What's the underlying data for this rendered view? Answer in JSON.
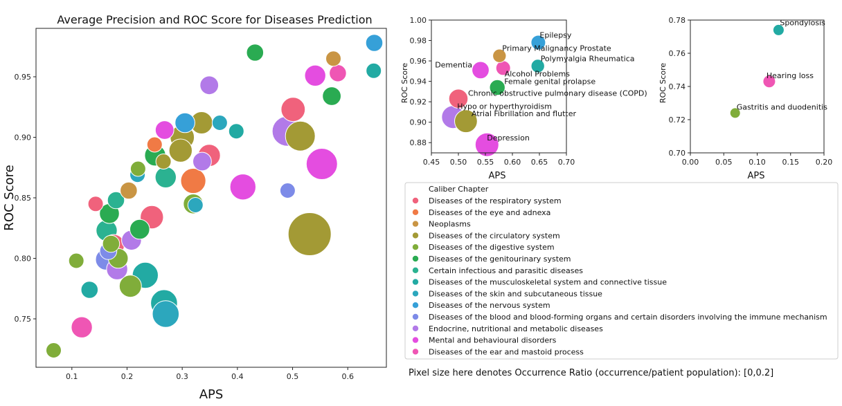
{
  "colors": {
    "respiratory": "#f0627c",
    "eye": "#f07a45",
    "neoplasms": "#c99544",
    "circulatory": "#a39a35",
    "digestive": "#80ad3a",
    "genitourinary": "#2aab52",
    "infectious": "#2bb291",
    "musculoskeletal": "#22aaa3",
    "skin": "#2ca7bd",
    "nervous": "#36a0d8",
    "blood": "#7d8be8",
    "endocrine": "#b27ae8",
    "mental": "#e44de0",
    "ear": "#ef56b4"
  },
  "legend": {
    "title": "Caliber Chapter",
    "items": [
      {
        "key": "respiratory",
        "label": "Diseases of the respiratory system"
      },
      {
        "key": "eye",
        "label": "Diseases of the eye and adnexa"
      },
      {
        "key": "neoplasms",
        "label": "Neoplasms"
      },
      {
        "key": "circulatory",
        "label": "Diseases of the circulatory system"
      },
      {
        "key": "digestive",
        "label": "Diseases of the digestive system"
      },
      {
        "key": "genitourinary",
        "label": "Diseases of the genitourinary system"
      },
      {
        "key": "infectious",
        "label": "Certain infectious and parasitic diseases"
      },
      {
        "key": "musculoskeletal",
        "label": "Diseases of the musculoskeletal system and connective tissue"
      },
      {
        "key": "skin",
        "label": "Diseases of the skin and subcutaneous tissue"
      },
      {
        "key": "nervous",
        "label": "Diseases of the nervous system"
      },
      {
        "key": "blood",
        "label": "Diseases of the blood and blood-forming organs and certain disorders involving the immune mechanism"
      },
      {
        "key": "endocrine",
        "label": "Endocrine, nutritional and metabolic diseases"
      },
      {
        "key": "mental",
        "label": "Mental and behavioural disorders"
      },
      {
        "key": "ear",
        "label": "Diseases of the ear and mastoid process"
      }
    ]
  },
  "caption": "Pixel size here denotes Occurrence Ratio (occurrence/patient population): [0,0.2]",
  "chart_data": [
    {
      "type": "scatter",
      "title": "Average Precision and ROC Score for Diseases Prediction",
      "xlabel": "APS",
      "ylabel": "ROC Score",
      "xlim": [
        0.035,
        0.67
      ],
      "ylim": [
        0.71,
        0.99
      ],
      "xticks": [
        0.1,
        0.2,
        0.3,
        0.4,
        0.5,
        0.6
      ],
      "yticks": [
        0.75,
        0.8,
        0.85,
        0.9,
        0.95
      ],
      "xtick_labels": [
        "0.1",
        "0.2",
        "0.3",
        "0.4",
        "0.5",
        "0.6"
      ],
      "ytick_labels": [
        "0.75",
        "0.80",
        "0.85",
        "0.90",
        "0.95"
      ],
      "grid": false,
      "points": [
        {
          "x": 0.067,
          "y": 0.724,
          "s": 0.01,
          "c": "digestive"
        },
        {
          "x": 0.108,
          "y": 0.798,
          "s": 0.01,
          "c": "digestive"
        },
        {
          "x": 0.118,
          "y": 0.743,
          "s": 0.03,
          "c": "ear"
        },
        {
          "x": 0.132,
          "y": 0.774,
          "s": 0.015,
          "c": "musculoskeletal"
        },
        {
          "x": 0.143,
          "y": 0.845,
          "s": 0.01,
          "c": "respiratory"
        },
        {
          "x": 0.162,
          "y": 0.799,
          "s": 0.03,
          "c": "blood"
        },
        {
          "x": 0.163,
          "y": 0.823,
          "s": 0.03,
          "c": "infectious"
        },
        {
          "x": 0.166,
          "y": 0.806,
          "s": 0.015,
          "c": "blood"
        },
        {
          "x": 0.168,
          "y": 0.837,
          "s": 0.025,
          "c": "genitourinary"
        },
        {
          "x": 0.171,
          "y": 0.812,
          "s": 0.015,
          "c": "digestive"
        },
        {
          "x": 0.176,
          "y": 0.811,
          "s": 0.03,
          "c": "respiratory"
        },
        {
          "x": 0.18,
          "y": 0.848,
          "s": 0.015,
          "c": "infectious"
        },
        {
          "x": 0.182,
          "y": 0.791,
          "s": 0.03,
          "c": "endocrine"
        },
        {
          "x": 0.184,
          "y": 0.8,
          "s": 0.025,
          "c": "digestive"
        },
        {
          "x": 0.203,
          "y": 0.856,
          "s": 0.015,
          "c": "neoplasms"
        },
        {
          "x": 0.206,
          "y": 0.777,
          "s": 0.035,
          "c": "digestive"
        },
        {
          "x": 0.208,
          "y": 0.815,
          "s": 0.025,
          "c": "endocrine"
        },
        {
          "x": 0.219,
          "y": 0.869,
          "s": 0.01,
          "c": "skin"
        },
        {
          "x": 0.22,
          "y": 0.874,
          "s": 0.01,
          "c": "digestive"
        },
        {
          "x": 0.223,
          "y": 0.824,
          "s": 0.025,
          "c": "genitourinary"
        },
        {
          "x": 0.233,
          "y": 0.786,
          "s": 0.055,
          "c": "musculoskeletal"
        },
        {
          "x": 0.245,
          "y": 0.834,
          "s": 0.04,
          "c": "respiratory"
        },
        {
          "x": 0.25,
          "y": 0.894,
          "s": 0.01,
          "c": "eye"
        },
        {
          "x": 0.251,
          "y": 0.885,
          "s": 0.03,
          "c": "genitourinary"
        },
        {
          "x": 0.266,
          "y": 0.88,
          "s": 0.01,
          "c": "circulatory"
        },
        {
          "x": 0.267,
          "y": 0.763,
          "s": 0.06,
          "c": "musculoskeletal"
        },
        {
          "x": 0.268,
          "y": 0.906,
          "s": 0.02,
          "c": "mental"
        },
        {
          "x": 0.27,
          "y": 0.754,
          "s": 0.06,
          "c": "skin"
        },
        {
          "x": 0.27,
          "y": 0.867,
          "s": 0.03,
          "c": "infectious"
        },
        {
          "x": 0.297,
          "y": 0.889,
          "s": 0.04,
          "c": "circulatory"
        },
        {
          "x": 0.3,
          "y": 0.9,
          "s": 0.045,
          "c": "circulatory"
        },
        {
          "x": 0.305,
          "y": 0.912,
          "s": 0.025,
          "c": "nervous"
        },
        {
          "x": 0.32,
          "y": 0.864,
          "s": 0.05,
          "c": "eye"
        },
        {
          "x": 0.32,
          "y": 0.845,
          "s": 0.025,
          "c": "digestive"
        },
        {
          "x": 0.324,
          "y": 0.844,
          "s": 0.01,
          "c": "skin"
        },
        {
          "x": 0.335,
          "y": 0.912,
          "s": 0.035,
          "c": "circulatory"
        },
        {
          "x": 0.336,
          "y": 0.88,
          "s": 0.02,
          "c": "endocrine"
        },
        {
          "x": 0.349,
          "y": 0.885,
          "s": 0.035,
          "c": "respiratory"
        },
        {
          "x": 0.349,
          "y": 0.943,
          "s": 0.02,
          "c": "endocrine"
        },
        {
          "x": 0.368,
          "y": 0.912,
          "s": 0.01,
          "c": "skin"
        },
        {
          "x": 0.398,
          "y": 0.905,
          "s": 0.01,
          "c": "musculoskeletal"
        },
        {
          "x": 0.41,
          "y": 0.859,
          "s": 0.055,
          "c": "mental"
        },
        {
          "x": 0.432,
          "y": 0.97,
          "s": 0.015,
          "c": "genitourinary"
        },
        {
          "x": 0.49,
          "y": 0.905,
          "s": 0.08,
          "c": "endocrine"
        },
        {
          "x": 0.491,
          "y": 0.856,
          "s": 0.01,
          "c": "blood"
        },
        {
          "x": 0.501,
          "y": 0.923,
          "s": 0.045,
          "c": "respiratory"
        },
        {
          "x": 0.514,
          "y": 0.901,
          "s": 0.08,
          "c": "circulatory"
        },
        {
          "x": 0.531,
          "y": 0.82,
          "s": 0.2,
          "c": "circulatory"
        },
        {
          "x": 0.541,
          "y": 0.951,
          "s": 0.03,
          "c": "mental"
        },
        {
          "x": 0.553,
          "y": 0.878,
          "s": 0.09,
          "c": "mental"
        },
        {
          "x": 0.571,
          "y": 0.934,
          "s": 0.02,
          "c": "genitourinary"
        },
        {
          "x": 0.574,
          "y": 0.965,
          "s": 0.01,
          "c": "neoplasms"
        },
        {
          "x": 0.582,
          "y": 0.953,
          "s": 0.015,
          "c": "ear"
        },
        {
          "x": 0.647,
          "y": 0.955,
          "s": 0.01,
          "c": "musculoskeletal"
        },
        {
          "x": 0.648,
          "y": 0.978,
          "s": 0.015,
          "c": "nervous"
        }
      ]
    },
    {
      "type": "scatter",
      "title": "",
      "xlabel": "APS",
      "ylabel": "ROC Score",
      "xlim": [
        0.45,
        0.7
      ],
      "ylim": [
        0.87,
        1.0
      ],
      "xticks": [
        0.45,
        0.5,
        0.55,
        0.6,
        0.65,
        0.7
      ],
      "yticks": [
        0.88,
        0.9,
        0.92,
        0.94,
        0.96,
        0.98,
        1.0
      ],
      "xtick_labels": [
        "0.45",
        "0.50",
        "0.55",
        "0.60",
        "0.65",
        "0.70"
      ],
      "ytick_labels": [
        "0.88",
        "0.90",
        "0.92",
        "0.94",
        "0.96",
        "0.98",
        "1.00"
      ],
      "grid": false,
      "points": [
        {
          "x": 0.648,
          "y": 0.978,
          "s": 0.015,
          "c": "nervous",
          "label": "Epilepsy",
          "ldx": 2,
          "ldy": -7,
          "anchor": "start"
        },
        {
          "x": 0.576,
          "y": 0.965,
          "s": 0.01,
          "c": "neoplasms",
          "label": "Primary Malignancy Prostate",
          "ldx": 4,
          "ldy": -7,
          "anchor": "start"
        },
        {
          "x": 0.647,
          "y": 0.955,
          "s": 0.01,
          "c": "musculoskeletal",
          "label": "Polymyalgia Rheumatica",
          "ldx": 4,
          "ldy": -7,
          "anchor": "start"
        },
        {
          "x": 0.541,
          "y": 0.951,
          "s": 0.03,
          "c": "mental",
          "label": "Dementia",
          "ldx": -12,
          "ldy": -4,
          "anchor": "end"
        },
        {
          "x": 0.583,
          "y": 0.953,
          "s": 0.015,
          "c": "ear",
          "label": "Alcohol Problems",
          "ldx": 2,
          "ldy": 12,
          "anchor": "start"
        },
        {
          "x": 0.572,
          "y": 0.934,
          "s": 0.02,
          "c": "genitourinary",
          "label": "Female genital prolapse",
          "ldx": 10,
          "ldy": -5,
          "anchor": "start"
        },
        {
          "x": 0.5,
          "y": 0.923,
          "s": 0.045,
          "c": "respiratory",
          "label": "Chronic obstructive pulmonary disease (COPD)",
          "ldx": 14,
          "ldy": -4,
          "anchor": "start"
        },
        {
          "x": 0.49,
          "y": 0.905,
          "s": 0.08,
          "c": "endocrine",
          "label": "Hypo or hyperthyroidism",
          "ldx": 6,
          "ldy": -12,
          "anchor": "start"
        },
        {
          "x": 0.514,
          "y": 0.901,
          "s": 0.08,
          "c": "circulatory",
          "label": "Atrial Fibrillation and flutter",
          "ldx": 8,
          "ldy": -7,
          "anchor": "start"
        },
        {
          "x": 0.553,
          "y": 0.878,
          "s": 0.09,
          "c": "mental",
          "label": "Depression",
          "ldx": 0,
          "ldy": -6,
          "anchor": "start"
        }
      ]
    },
    {
      "type": "scatter",
      "title": "",
      "xlabel": "APS",
      "ylabel": "ROC Score",
      "xlim": [
        0.0,
        0.2
      ],
      "ylim": [
        0.7,
        0.78
      ],
      "xticks": [
        0.0,
        0.05,
        0.1,
        0.15,
        0.2
      ],
      "yticks": [
        0.7,
        0.72,
        0.74,
        0.76,
        0.78
      ],
      "xtick_labels": [
        "0.00",
        "0.05",
        "0.10",
        "0.15",
        "0.20"
      ],
      "ytick_labels": [
        "0.70",
        "0.72",
        "0.74",
        "0.76",
        "0.78"
      ],
      "grid": false,
      "points": [
        {
          "x": 0.132,
          "y": 0.774,
          "s": 0.015,
          "c": "musculoskeletal",
          "label": "Spondylosis",
          "ldx": 2,
          "ldy": -7,
          "anchor": "start"
        },
        {
          "x": 0.118,
          "y": 0.743,
          "s": 0.03,
          "c": "ear",
          "label": "Hearing loss",
          "ldx": -4,
          "ldy": -5,
          "anchor": "start"
        },
        {
          "x": 0.067,
          "y": 0.724,
          "s": 0.01,
          "c": "digestive",
          "label": "Gastritis and duodenitis",
          "ldx": 2,
          "ldy": -5,
          "anchor": "start"
        }
      ]
    }
  ]
}
